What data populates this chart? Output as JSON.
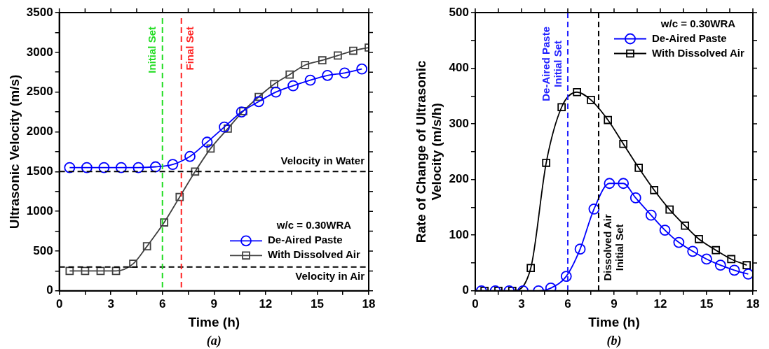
{
  "chart_data": [
    {
      "type": "line",
      "xlabel": "Time (h)",
      "ylabel": "Ultrasonic Velocity (m/s)",
      "legend_title": "w/c = 0.30WRA",
      "legend": "bottom right",
      "annotations": [
        "(a)"
      ],
      "xlim": [
        0,
        18
      ],
      "ylim": [
        0,
        3500
      ],
      "xticks": [
        0,
        {
          "value": 1.5,
          "label": null
        },
        3,
        {
          "value": 4.5,
          "label": null
        },
        6,
        {
          "value": 7.5,
          "label": null
        },
        9,
        {
          "value": 10.5,
          "label": null
        },
        12,
        {
          "value": 13.5,
          "label": null
        },
        15,
        {
          "value": 16.5,
          "label": null
        },
        18
      ],
      "yticks": [
        0,
        {
          "value": 250,
          "label": null
        },
        500,
        {
          "value": 750,
          "label": null
        },
        1000,
        {
          "value": 1250,
          "label": null
        },
        1500,
        {
          "value": 1750,
          "label": null
        },
        2000,
        {
          "value": 2250,
          "label": null
        },
        2500,
        {
          "value": 2750,
          "label": null
        },
        3000,
        {
          "value": 3250,
          "label": null
        },
        3500
      ],
      "ref_lines": [
        {
          "axis": "y",
          "value": 1500,
          "label": "Velocity in Water",
          "color": "#000000",
          "line_style": "dashed"
        },
        {
          "axis": "y",
          "value": 300,
          "label": "Velocity in Air",
          "color": "#000000",
          "line_style": "dashed"
        },
        {
          "axis": "x",
          "value": 6,
          "label": "Initial Set",
          "color": "#22dd22",
          "line_style": "dashed"
        },
        {
          "axis": "x",
          "value": 7.1,
          "label": "Final Set",
          "color": "#ff2222",
          "line_style": "dashed"
        }
      ],
      "series": [
        {
          "name": "De-Aired Paste",
          "color": "#0000ff",
          "marker": "circle",
          "x": [
            0.6,
            1.6,
            2.6,
            3.6,
            4.6,
            5.6,
            6.6,
            7.6,
            8.6,
            9.6,
            10.6,
            11.6,
            12.6,
            13.6,
            14.6,
            15.6,
            16.6,
            17.6
          ],
          "values": [
            1550,
            1550,
            1550,
            1550,
            1550,
            1560,
            1590,
            1690,
            1870,
            2060,
            2250,
            2380,
            2500,
            2580,
            2650,
            2710,
            2740,
            2790
          ]
        },
        {
          "name": "With Dissolved Air",
          "color": "#404040",
          "marker": "square",
          "x": [
            0.6,
            1.5,
            2.4,
            3.3,
            4.3,
            5.1,
            6.1,
            7.0,
            7.9,
            8.8,
            9.8,
            10.7,
            11.6,
            12.5,
            13.4,
            14.3,
            15.3,
            16.2,
            17.1,
            18.0
          ],
          "values": [
            250,
            250,
            250,
            250,
            340,
            560,
            860,
            1180,
            1500,
            1790,
            2040,
            2260,
            2440,
            2600,
            2720,
            2840,
            2900,
            2960,
            3020,
            3060
          ]
        }
      ]
    },
    {
      "type": "line",
      "xlabel": "Time (h)",
      "ylabel": "Rate of Change of Ultrasonic\nVelocity (m/s/h)",
      "legend_title": "w/c = 0.30WRA",
      "legend": "top right",
      "annotations": [
        "(b)"
      ],
      "xlim": [
        0,
        18
      ],
      "ylim": [
        0,
        500
      ],
      "xticks": [
        0,
        {
          "value": 1.5,
          "label": null
        },
        3,
        {
          "value": 4.5,
          "label": null
        },
        6,
        {
          "value": 7.5,
          "label": null
        },
        9,
        {
          "value": 10.5,
          "label": null
        },
        12,
        {
          "value": 13.5,
          "label": null
        },
        15,
        {
          "value": 16.5,
          "label": null
        },
        18
      ],
      "yticks": [
        0,
        {
          "value": 50,
          "label": null
        },
        100,
        {
          "value": 150,
          "label": null
        },
        200,
        {
          "value": 250,
          "label": null
        },
        300,
        {
          "value": 350,
          "label": null
        },
        400,
        {
          "value": 450,
          "label": null
        },
        500
      ],
      "ref_lines": [
        {
          "axis": "x",
          "value": 6,
          "label": "De-Aired Paste\nInitial Set",
          "color": "#2222ff",
          "line_style": "dashed"
        },
        {
          "axis": "x",
          "value": 8,
          "label": "Dissolved Air\nInitial Set",
          "color": "#000000",
          "line_style": "dashed"
        }
      ],
      "series": [
        {
          "name": "De-Aired Paste",
          "color": "#0000ff",
          "marker": "circle",
          "x": [
            0.4,
            1.3,
            2.2,
            3.1,
            4.1,
            4.9,
            5.9,
            6.8,
            7.7,
            8.7,
            9.6,
            10.4,
            11.4,
            12.3,
            13.2,
            14.1,
            15.0,
            15.9,
            16.8,
            17.7
          ],
          "values": [
            0,
            0,
            0,
            0,
            0,
            5,
            26,
            75,
            147,
            193,
            193,
            167,
            136,
            109,
            87,
            71,
            57,
            46,
            37,
            30
          ]
        },
        {
          "name": "With Dissolved Air",
          "color": "#000000",
          "marker": "square",
          "x": [
            0.6,
            1.5,
            2.4,
            3.6,
            4.6,
            5.6,
            6.6,
            7.5,
            8.6,
            9.6,
            10.6,
            11.6,
            12.6,
            13.6,
            14.5,
            15.6,
            16.6,
            17.6
          ],
          "values": [
            0,
            0,
            0,
            41,
            230,
            330,
            357,
            343,
            307,
            264,
            221,
            181,
            146,
            117,
            93,
            73,
            57,
            46
          ]
        }
      ]
    }
  ]
}
